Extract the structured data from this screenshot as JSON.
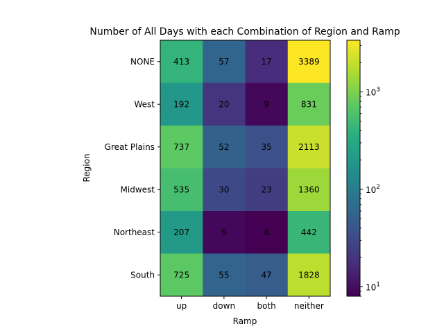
{
  "chart_data": {
    "type": "heatmap",
    "title": "Number of All Days with each Combination of Region and Ramp",
    "xlabel": "Ramp",
    "ylabel": "Region",
    "x_categories": [
      "up",
      "down",
      "both",
      "neither"
    ],
    "y_categories": [
      "NONE",
      "West",
      "Great Plains",
      "Midwest",
      "Northeast",
      "South"
    ],
    "values": [
      [
        413,
        57,
        17,
        3389
      ],
      [
        192,
        20,
        9,
        831
      ],
      [
        737,
        52,
        35,
        2113
      ],
      [
        535,
        30,
        23,
        1360
      ],
      [
        207,
        9,
        8,
        442
      ],
      [
        725,
        55,
        47,
        1828
      ]
    ],
    "colorscale": "viridis",
    "color_scale_type": "log",
    "color_range": [
      8,
      3389
    ],
    "colorbar_ticks": [
      {
        "value": 10,
        "label": "10",
        "exp": "1"
      },
      {
        "value": 100,
        "label": "10",
        "exp": "2"
      },
      {
        "value": 1000,
        "label": "10",
        "exp": "3"
      }
    ]
  }
}
